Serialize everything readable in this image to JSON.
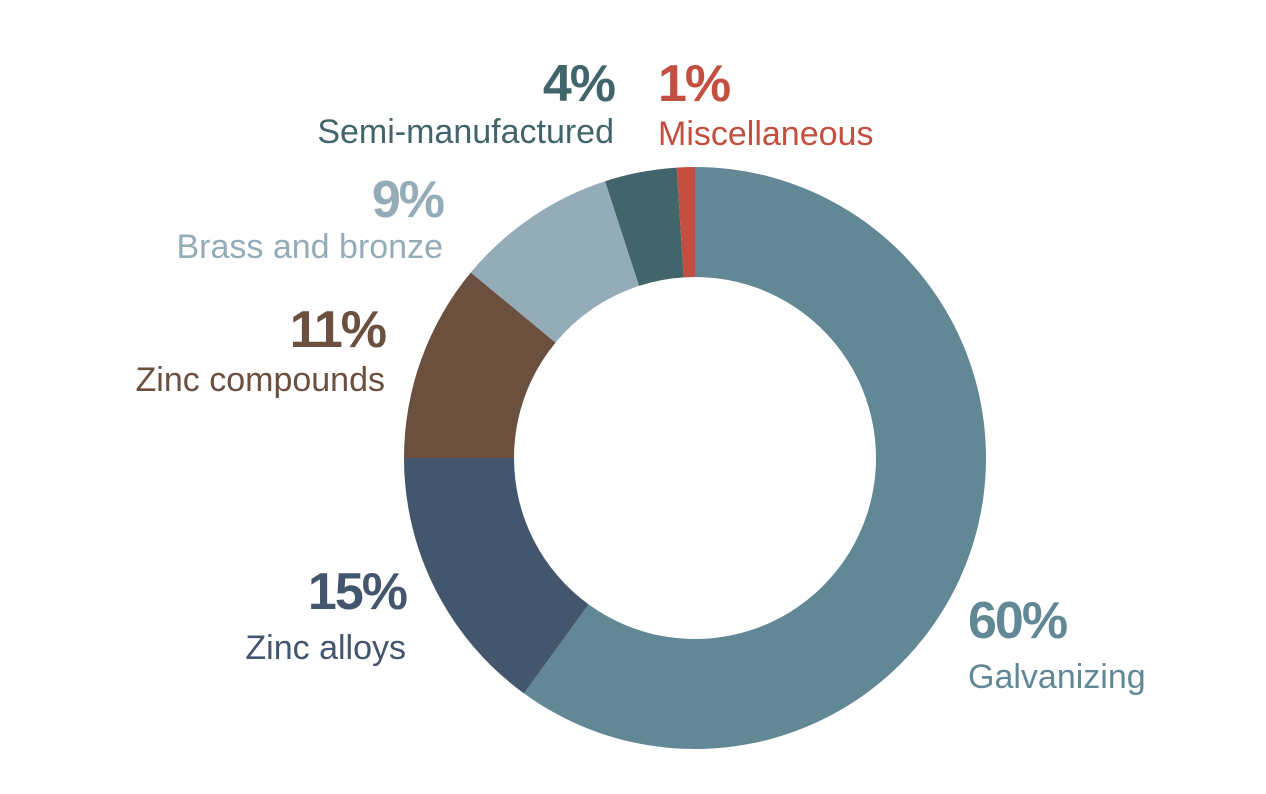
{
  "chart_data": {
    "type": "pie",
    "donut": true,
    "start": "12 o'clock, clockwise",
    "slices": [
      {
        "label": "Galvanizing",
        "value": 60,
        "value_label": "60%",
        "color": "#628896"
      },
      {
        "label": "Zinc alloys",
        "value": 15,
        "value_label": "15%",
        "color": "#43566e"
      },
      {
        "label": "Zinc compounds",
        "value": 11,
        "value_label": "11%",
        "color": "#6b4f3f"
      },
      {
        "label": "Brass and bronze",
        "value": 9,
        "value_label": "9%",
        "color": "#94acb8"
      },
      {
        "label": "Semi-manufactured",
        "value": 4,
        "value_label": "4%",
        "color": "#42646b"
      },
      {
        "label": "Miscellaneous",
        "value": 1,
        "value_label": "1%",
        "color": "#c24f3f"
      }
    ]
  }
}
